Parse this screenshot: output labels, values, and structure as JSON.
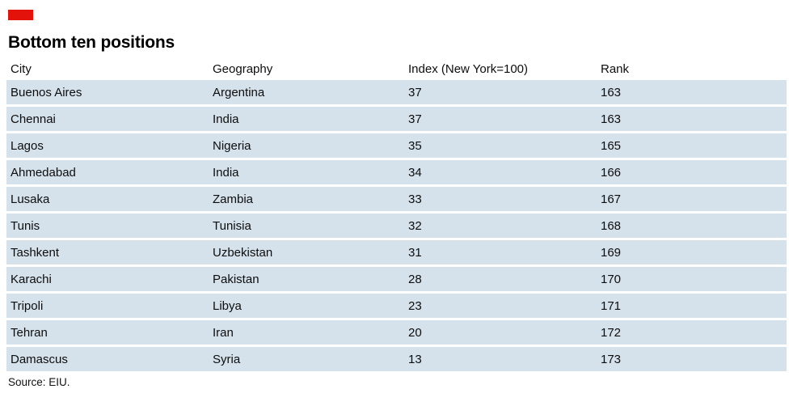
{
  "brand": {
    "accent_color": "#E3120B",
    "row_color": "#D5E2EC"
  },
  "title": "Bottom ten positions",
  "table": {
    "columns": [
      "City",
      "Geography",
      "Index (New York=100)",
      "Rank"
    ],
    "column_keys": [
      "city",
      "geography",
      "index",
      "rank"
    ],
    "rows": [
      {
        "city": "Buenos Aires",
        "geography": "Argentina",
        "index": "37",
        "rank": "163"
      },
      {
        "city": "Chennai",
        "geography": "India",
        "index": "37",
        "rank": "163"
      },
      {
        "city": "Lagos",
        "geography": "Nigeria",
        "index": "35",
        "rank": "165"
      },
      {
        "city": "Ahmedabad",
        "geography": "India",
        "index": "34",
        "rank": "166"
      },
      {
        "city": "Lusaka",
        "geography": "Zambia",
        "index": "33",
        "rank": "167"
      },
      {
        "city": "Tunis",
        "geography": "Tunisia",
        "index": "32",
        "rank": "168"
      },
      {
        "city": "Tashkent",
        "geography": "Uzbekistan",
        "index": "31",
        "rank": "169"
      },
      {
        "city": "Karachi",
        "geography": "Pakistan",
        "index": "28",
        "rank": "170"
      },
      {
        "city": "Tripoli",
        "geography": "Libya",
        "index": "23",
        "rank": "171"
      },
      {
        "city": "Tehran",
        "geography": "Iran",
        "index": "20",
        "rank": "172"
      },
      {
        "city": "Damascus",
        "geography": "Syria",
        "index": "13",
        "rank": "173"
      }
    ]
  },
  "source": "Source: EIU.",
  "chart_data": {
    "type": "table",
    "title": "Bottom ten positions",
    "columns": [
      "City",
      "Geography",
      "Index (New York=100)",
      "Rank"
    ],
    "rows": [
      [
        "Buenos Aires",
        "Argentina",
        37,
        163
      ],
      [
        "Chennai",
        "India",
        37,
        163
      ],
      [
        "Lagos",
        "Nigeria",
        35,
        165
      ],
      [
        "Ahmedabad",
        "India",
        34,
        166
      ],
      [
        "Lusaka",
        "Zambia",
        33,
        167
      ],
      [
        "Tunis",
        "Tunisia",
        32,
        168
      ],
      [
        "Tashkent",
        "Uzbekistan",
        31,
        169
      ],
      [
        "Karachi",
        "Pakistan",
        28,
        170
      ],
      [
        "Tripoli",
        "Libya",
        23,
        171
      ],
      [
        "Tehran",
        "Iran",
        20,
        172
      ],
      [
        "Damascus",
        "Syria",
        13,
        173
      ]
    ],
    "source": "Source: EIU."
  }
}
